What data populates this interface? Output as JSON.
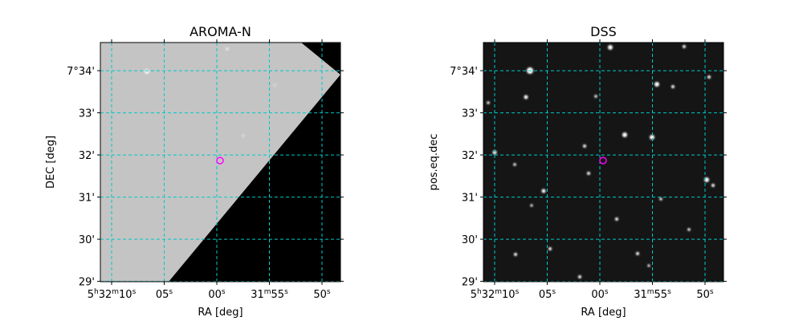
{
  "chart_data": [
    {
      "type": "image",
      "title": "AROMA-N",
      "xlabel": "RA [deg]",
      "ylabel": "DEC [deg]",
      "xlim": [
        83.04612,
        82.95102
      ],
      "ylim": [
        7.4832,
        7.5778
      ],
      "xticks": [
        {
          "value": 83.041667,
          "label": "5h32m10s"
        },
        {
          "value": 83.020833,
          "label": "05s"
        },
        {
          "value": 83.0,
          "label": "00s"
        },
        {
          "value": 82.979167,
          "label": "31m55s"
        },
        {
          "value": 82.958333,
          "label": "50s"
        }
      ],
      "yticks": [
        {
          "value": 7.483333,
          "label": "29'"
        },
        {
          "value": 7.5,
          "label": "30'"
        },
        {
          "value": 7.516667,
          "label": "31'"
        },
        {
          "value": 7.533333,
          "label": "32'"
        },
        {
          "value": 7.55,
          "label": "33'"
        },
        {
          "value": 7.566667,
          "label": "7°34'"
        }
      ],
      "grid": true,
      "grid_color": "#00c8c8",
      "marker": {
        "x": 82.99873,
        "y": 7.53111,
        "color": "#ff00ff"
      }
    },
    {
      "type": "image",
      "title": "DSS",
      "xlabel": "RA [deg]",
      "ylabel": "pos.eq.dec",
      "xlim": [
        83.04612,
        82.95102
      ],
      "ylim": [
        7.4832,
        7.5778
      ],
      "xticks": [
        {
          "value": 83.041667,
          "label": "5h32m10s"
        },
        {
          "value": 83.020833,
          "label": "05s"
        },
        {
          "value": 83.0,
          "label": "00s"
        },
        {
          "value": 82.979167,
          "label": "31m55s"
        },
        {
          "value": 82.958333,
          "label": "50s"
        }
      ],
      "yticks": [
        {
          "value": 7.483333,
          "label": "29'"
        },
        {
          "value": 7.5,
          "label": "30'"
        },
        {
          "value": 7.516667,
          "label": "31'"
        },
        {
          "value": 7.533333,
          "label": "32'"
        },
        {
          "value": 7.55,
          "label": "33'"
        },
        {
          "value": 7.566667,
          "label": "7°34'"
        }
      ],
      "grid": true,
      "grid_color": "#00c8c8",
      "marker": {
        "x": 82.99873,
        "y": 7.53111,
        "color": "#ff00ff"
      }
    }
  ]
}
